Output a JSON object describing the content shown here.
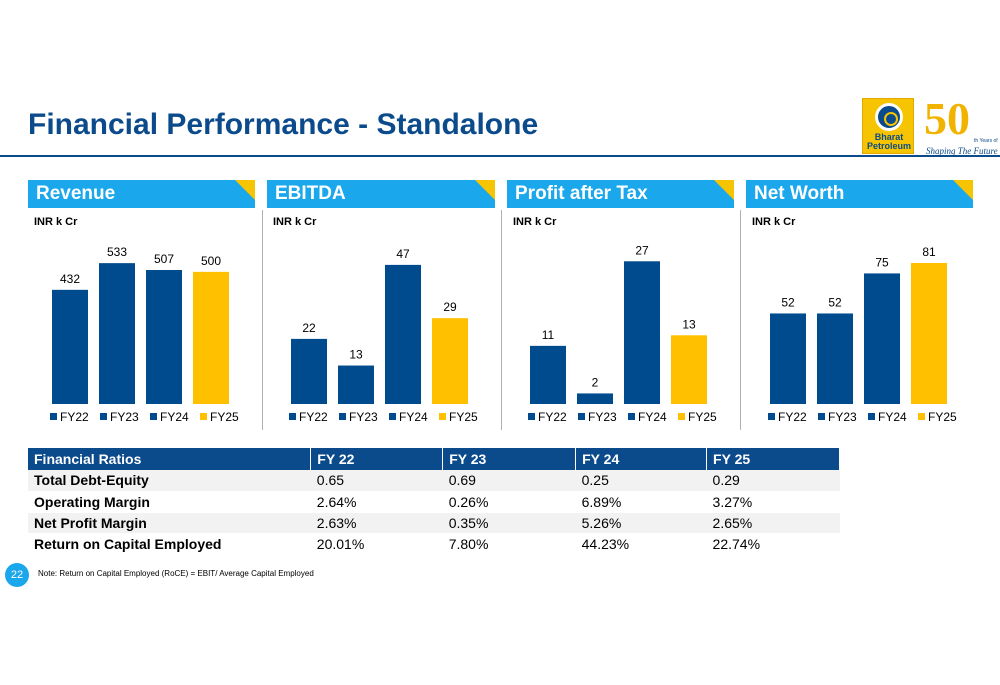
{
  "page": {
    "title": "Financial Performance - Standalone",
    "page_number": "22",
    "note": "Note: Return on Capital Employed (RoCE) = EBIT/ Average Capital Employed"
  },
  "logos": {
    "bpcl_text_1": "Bharat",
    "bpcl_text_2": "Petroleum",
    "anniversary_number": "50",
    "anniversary_small": "th Years of",
    "anniversary_tagline": "Shaping The Future"
  },
  "colors": {
    "primary_blue": "#0b4a8b",
    "header_cyan": "#1aa7ec",
    "accent_yellow": "#ffc000",
    "bar_blue": "#004b8d"
  },
  "chart_data": [
    {
      "type": "bar",
      "title": "Revenue",
      "unit_label": "INR k Cr",
      "categories": [
        "FY22",
        "FY23",
        "FY24",
        "FY25"
      ],
      "values": [
        432,
        533,
        507,
        500
      ],
      "ylim": [
        0,
        560
      ],
      "legend": "bottom",
      "grid": false
    },
    {
      "type": "bar",
      "title": "EBITDA",
      "unit_label": "INR k Cr",
      "categories": [
        "FY22",
        "FY23",
        "FY24",
        "FY25"
      ],
      "values": [
        22,
        13,
        47,
        29
      ],
      "ylim": [
        0,
        50
      ],
      "legend": "bottom",
      "grid": false
    },
    {
      "type": "bar",
      "title": "Profit after Tax",
      "unit_label": "INR k Cr",
      "categories": [
        "FY22",
        "FY23",
        "FY24",
        "FY25"
      ],
      "values": [
        11,
        2,
        27,
        13
      ],
      "ylim": [
        0,
        28
      ],
      "legend": "bottom",
      "grid": false
    },
    {
      "type": "bar",
      "title": "Net Worth",
      "unit_label": "INR k Cr",
      "categories": [
        "FY22",
        "FY23",
        "FY24",
        "FY25"
      ],
      "values": [
        52,
        52,
        75,
        81
      ],
      "ylim": [
        0,
        85
      ],
      "legend": "bottom",
      "grid": false
    }
  ],
  "ratios_table": {
    "headers": [
      "Financial Ratios",
      "FY 22",
      "FY 23",
      "FY 24",
      "FY 25"
    ],
    "rows": [
      [
        "Total Debt-Equity",
        "0.65",
        "0.69",
        "0.25",
        "0.29"
      ],
      [
        "Operating Margin",
        "2.64%",
        "0.26%",
        "6.89%",
        "3.27%"
      ],
      [
        "Net Profit Margin",
        "2.63%",
        "0.35%",
        "5.26%",
        "2.65%"
      ],
      [
        "Return on Capital Employed",
        "20.01%",
        "7.80%",
        "44.23%",
        "22.74%"
      ]
    ]
  }
}
